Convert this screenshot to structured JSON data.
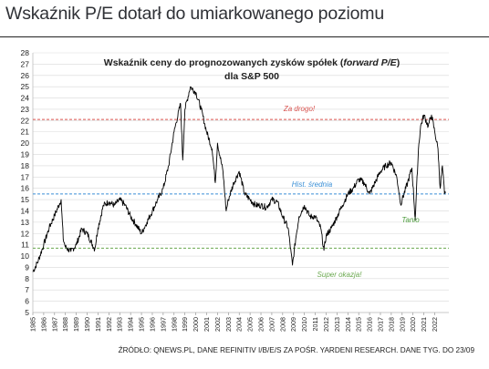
{
  "header": {
    "title": "Wskaźnik P/E dotarł do umiarkowanego poziomu"
  },
  "footer": {
    "source": "ŹRÓDŁO: QNEWS.PL, DANE REFINITIV I/B/E/S ZA POŚR. YARDENI RESEARCH. DANE TYG. DO 23/09"
  },
  "chart_data": {
    "type": "line",
    "title_line1": "Wskaźnik ceny do prognozowanych zysków spółek (",
    "title_italic": "forward P/E",
    "title_line1_end": ")",
    "title_line2": "dla S&P 500",
    "ylim": [
      5,
      28
    ],
    "yticks": [
      5,
      6,
      7,
      8,
      9,
      10,
      11,
      12,
      13,
      14,
      15,
      16,
      17,
      18,
      19,
      20,
      21,
      22,
      23,
      24,
      25,
      26,
      27,
      28
    ],
    "xlim": [
      1985,
      2023.3
    ],
    "xticks": [
      "1985",
      "1986",
      "1987",
      "1988",
      "1989",
      "1990",
      "1991",
      "1992",
      "1993",
      "1994",
      "1995",
      "1996",
      "1997",
      "1998",
      "1999",
      "2000",
      "2001",
      "2002",
      "2003",
      "2004",
      "2005",
      "2006",
      "2007",
      "2008",
      "2009",
      "2010",
      "2011",
      "2012",
      "2013",
      "2014",
      "2015",
      "2016",
      "2017",
      "2018",
      "2019",
      "2020",
      "2021",
      "2022"
    ],
    "grid": true,
    "series": [
      {
        "color": "#000000",
        "points": [
          [
            1985.0,
            8.6
          ],
          [
            1985.5,
            9.6
          ],
          [
            1986.0,
            11.0
          ],
          [
            1986.5,
            12.5
          ],
          [
            1987.0,
            13.6
          ],
          [
            1987.6,
            15.0
          ],
          [
            1987.8,
            11.5
          ],
          [
            1988.0,
            10.8
          ],
          [
            1988.5,
            10.4
          ],
          [
            1989.0,
            11.0
          ],
          [
            1989.5,
            12.4
          ],
          [
            1990.0,
            12.0
          ],
          [
            1990.7,
            10.6
          ],
          [
            1991.0,
            12.5
          ],
          [
            1991.5,
            14.5
          ],
          [
            1992.0,
            14.8
          ],
          [
            1992.5,
            14.5
          ],
          [
            1993.0,
            15.0
          ],
          [
            1993.5,
            14.5
          ],
          [
            1994.0,
            13.5
          ],
          [
            1994.5,
            12.8
          ],
          [
            1995.0,
            12.0
          ],
          [
            1995.5,
            13.0
          ],
          [
            1996.0,
            14.0
          ],
          [
            1996.5,
            15.0
          ],
          [
            1997.0,
            16.0
          ],
          [
            1997.5,
            18.0
          ],
          [
            1998.0,
            21.0
          ],
          [
            1998.6,
            23.5
          ],
          [
            1998.8,
            18.5
          ],
          [
            1999.0,
            23.0
          ],
          [
            1999.5,
            25.0
          ],
          [
            2000.0,
            24.5
          ],
          [
            2000.5,
            23.0
          ],
          [
            2001.0,
            21.0
          ],
          [
            2001.5,
            19.5
          ],
          [
            2001.8,
            16.5
          ],
          [
            2002.0,
            20.0
          ],
          [
            2002.5,
            17.5
          ],
          [
            2002.8,
            14.0
          ],
          [
            2003.0,
            15.0
          ],
          [
            2003.5,
            16.5
          ],
          [
            2004.0,
            17.5
          ],
          [
            2004.5,
            15.5
          ],
          [
            2005.0,
            15.0
          ],
          [
            2005.5,
            14.5
          ],
          [
            2006.0,
            14.5
          ],
          [
            2006.5,
            14.3
          ],
          [
            2007.0,
            15.0
          ],
          [
            2007.5,
            14.8
          ],
          [
            2008.0,
            13.5
          ],
          [
            2008.5,
            12.5
          ],
          [
            2008.9,
            9.2
          ],
          [
            2009.2,
            11.5
          ],
          [
            2009.5,
            13.5
          ],
          [
            2010.0,
            14.5
          ],
          [
            2010.5,
            13.5
          ],
          [
            2011.0,
            13.5
          ],
          [
            2011.5,
            12.5
          ],
          [
            2011.8,
            10.5
          ],
          [
            2012.0,
            11.8
          ],
          [
            2012.5,
            12.5
          ],
          [
            2013.0,
            13.5
          ],
          [
            2013.5,
            14.5
          ],
          [
            2014.0,
            15.5
          ],
          [
            2014.5,
            16.0
          ],
          [
            2015.0,
            16.8
          ],
          [
            2015.5,
            16.5
          ],
          [
            2016.0,
            15.5
          ],
          [
            2016.5,
            16.5
          ],
          [
            2017.0,
            17.5
          ],
          [
            2017.5,
            18.0
          ],
          [
            2018.0,
            18.3
          ],
          [
            2018.5,
            17.0
          ],
          [
            2018.9,
            14.5
          ],
          [
            2019.0,
            15.0
          ],
          [
            2019.5,
            16.5
          ],
          [
            2019.9,
            17.8
          ],
          [
            2020.2,
            13.2
          ],
          [
            2020.5,
            19.5
          ],
          [
            2020.7,
            21.5
          ],
          [
            2021.0,
            22.5
          ],
          [
            2021.4,
            21.5
          ],
          [
            2021.7,
            22.5
          ],
          [
            2022.0,
            21.0
          ],
          [
            2022.3,
            19.5
          ],
          [
            2022.5,
            16.0
          ],
          [
            2022.7,
            18.0
          ],
          [
            2022.9,
            15.5
          ],
          [
            2023.0,
            15.6
          ]
        ]
      }
    ],
    "reference_lines": [
      {
        "label": "Za drogo!",
        "value": 22.1,
        "color": "#d9534f"
      },
      {
        "label": "Hist. średnia",
        "value": 15.5,
        "color": "#3a8fd6"
      },
      {
        "label": "Super okazja!",
        "value": 10.7,
        "color": "#6aa84f"
      }
    ],
    "annotations": [
      {
        "text": "Tanio",
        "color": "#4a9a3a"
      }
    ]
  }
}
